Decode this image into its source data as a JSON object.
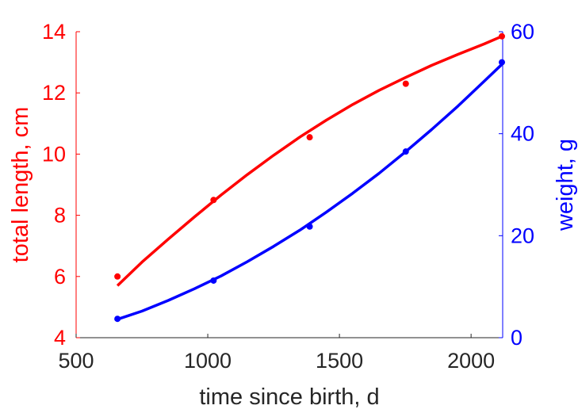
{
  "chart_data": {
    "type": "line",
    "xlabel": "time since birth, d",
    "xlim": [
      500,
      2120
    ],
    "xticks": [
      500,
      1000,
      1500,
      2000
    ],
    "y_left": {
      "label": "total length, cm",
      "lim": [
        4,
        14
      ],
      "ticks": [
        4,
        6,
        8,
        10,
        12,
        14
      ],
      "color": "#ff0000"
    },
    "y_right": {
      "label": "weight, g",
      "lim": [
        0,
        60
      ],
      "ticks": [
        0,
        20,
        40,
        60
      ],
      "color": "#0000ff"
    },
    "series": [
      {
        "axis": "left",
        "color": "#ff0000",
        "points": {
          "x": [
            657,
            1022,
            1387,
            1752,
            2117
          ],
          "y": [
            6.0,
            8.5,
            10.55,
            12.3,
            13.85
          ]
        },
        "fit": {
          "x": [
            657,
            750,
            850,
            950,
            1050,
            1150,
            1250,
            1350,
            1450,
            1550,
            1650,
            1750,
            1850,
            1950,
            2050,
            2117
          ],
          "y": [
            5.7,
            6.47,
            7.22,
            7.95,
            8.66,
            9.33,
            9.96,
            10.56,
            11.11,
            11.62,
            12.08,
            12.5,
            12.9,
            13.26,
            13.6,
            13.85
          ]
        }
      },
      {
        "axis": "right",
        "color": "#0000ff",
        "points": {
          "x": [
            657,
            1022,
            1387,
            1752,
            2117
          ],
          "y": [
            3.7,
            11.2,
            21.8,
            36.5,
            54.0
          ]
        },
        "fit": {
          "x": [
            657,
            750,
            850,
            950,
            1050,
            1150,
            1250,
            1350,
            1450,
            1550,
            1650,
            1750,
            1850,
            1950,
            2050,
            2117
          ],
          "y": [
            3.6,
            5.2,
            7.3,
            9.6,
            12.1,
            14.9,
            17.9,
            21.1,
            24.6,
            28.3,
            32.2,
            36.4,
            40.8,
            45.4,
            50.3,
            53.6
          ]
        }
      }
    ]
  }
}
